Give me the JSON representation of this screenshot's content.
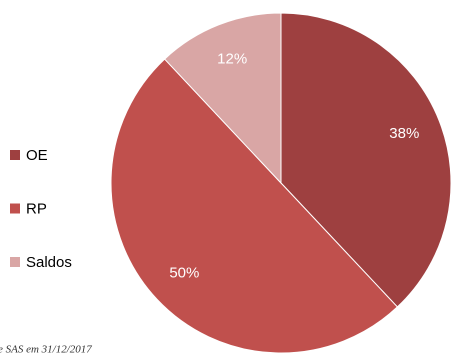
{
  "chart_data": {
    "type": "pie",
    "categories": [
      "OE",
      "RP",
      "Saldos"
    ],
    "values": [
      38,
      50,
      12
    ],
    "value_labels": [
      "38%",
      "50%",
      "12%"
    ],
    "colors": [
      "#9e4040",
      "#c0504d",
      "#d9a6a5"
    ],
    "note": "e SAS em 31/12/2017",
    "legend": "left"
  }
}
